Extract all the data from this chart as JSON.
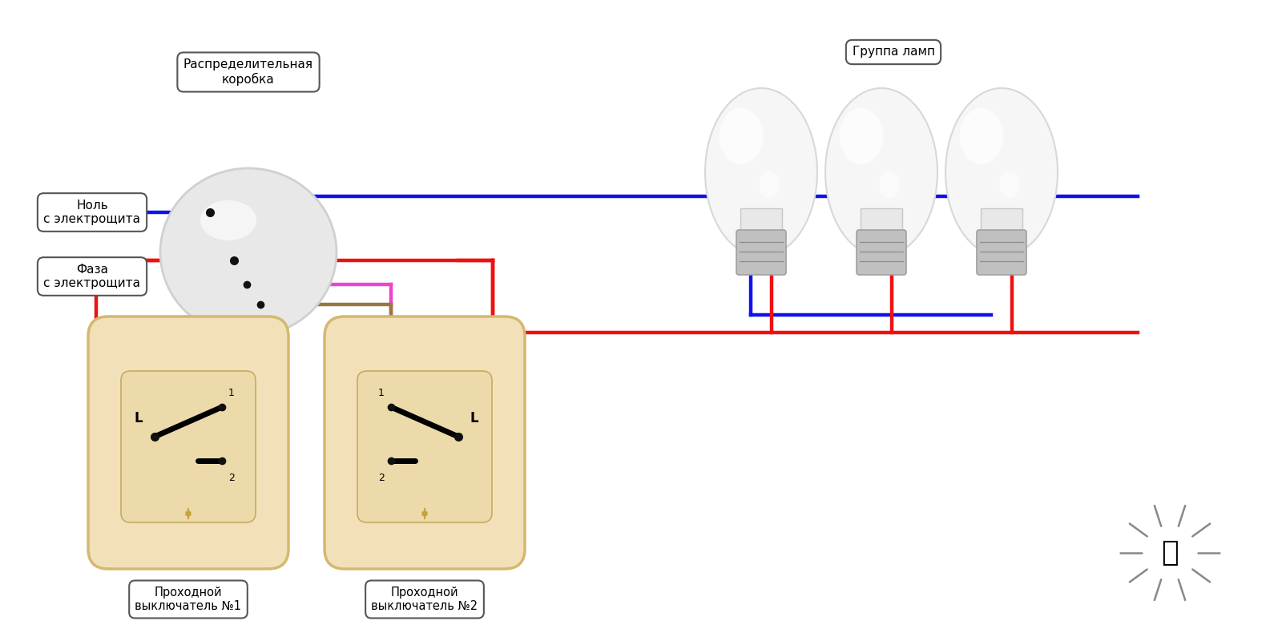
{
  "bg_color": "#ffffff",
  "labels": {
    "dist_box": "Распределительная\nкоробка",
    "null": "Ноль\nс электрощита",
    "phase": "Фаза\nс электрощита",
    "group": "Группа ламп",
    "sw1": "Проходной\nвыключатель №1",
    "sw2": "Проходной\nвыключатель №2"
  },
  "colors": {
    "blue": "#1111ee",
    "red": "#ee1111",
    "pink": "#ee44cc",
    "brown": "#997744",
    "black": "#111111",
    "white": "#ffffff",
    "switch_bg": "#f2e0b8",
    "switch_border": "#d4b870",
    "switch_inner": "#eedca0",
    "label_bg": "#ffffff",
    "label_border": "#555555",
    "jbox_fill": "#e0e0e0",
    "jbox_edge": "#bbbbbb",
    "dot": "#111111",
    "gold": "#c8a040"
  },
  "lw": 3.2,
  "figsize": [
    16,
    8
  ],
  "dpi": 100
}
